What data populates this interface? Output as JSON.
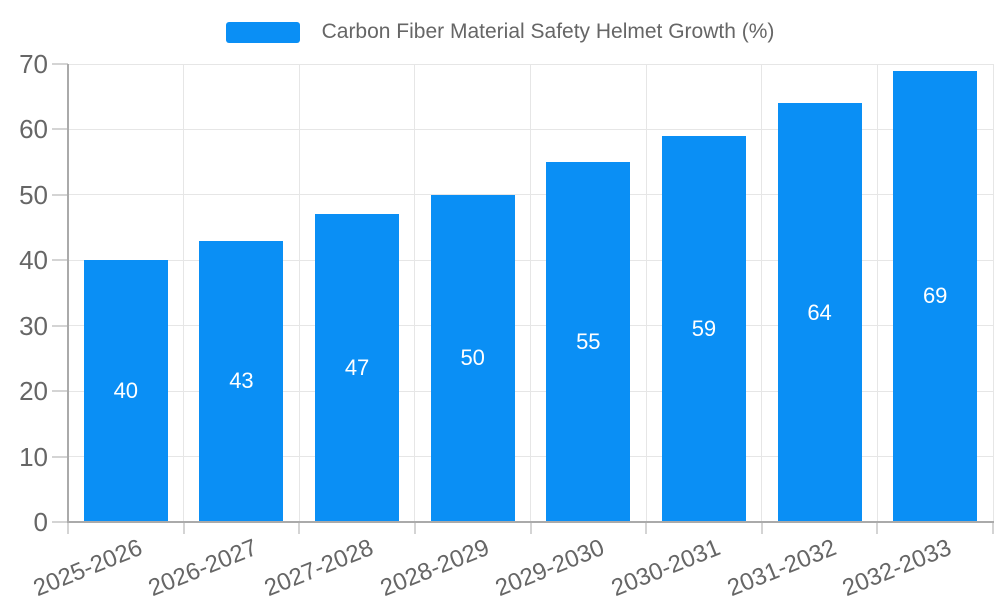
{
  "legend": {
    "label": "Carbon Fiber Material Safety Helmet Growth (%)"
  },
  "chart_data": {
    "type": "bar",
    "title": "Carbon Fiber Material Safety Helmet Growth (%)",
    "series_name": "Carbon Fiber Material Safety Helmet Growth (%)",
    "categories": [
      "2025-2026",
      "2026-2027",
      "2027-2028",
      "2028-2029",
      "2029-2030",
      "2030-2031",
      "2031-2032",
      "2032-2033"
    ],
    "values": [
      40,
      43,
      47,
      50,
      55,
      59,
      64,
      69
    ],
    "bar_value_labels": [
      "40",
      "43",
      "47",
      "50",
      "55",
      "59",
      "64",
      "69"
    ],
    "xlabel": "",
    "ylabel": "",
    "ylim": [
      0,
      70
    ],
    "yticks": [
      0,
      10,
      20,
      30,
      40,
      50,
      60,
      70
    ],
    "grid": true,
    "legend_position": "top-center",
    "colors": {
      "bar": "#0A8FF5",
      "bar_label_text": "#ffffff",
      "axis_text": "#666666",
      "legend_text": "#666666",
      "gridline": "#e6e6e6",
      "axis_line": "#aaaaaa",
      "tick_mark": "#d4d4d4",
      "background": "#ffffff"
    }
  }
}
